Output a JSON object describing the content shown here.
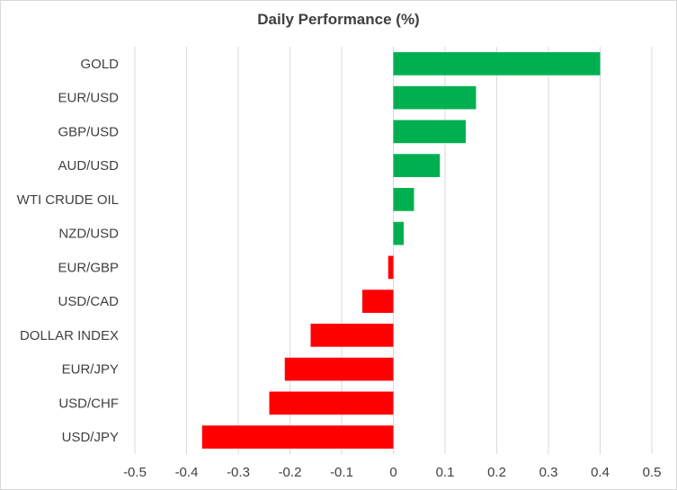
{
  "chart_data": {
    "type": "bar",
    "orientation": "horizontal",
    "title": "Daily Performance  (%)",
    "xlabel": "",
    "ylabel": "",
    "xlim": [
      -0.5,
      0.5
    ],
    "x_ticks": [
      "-0.5",
      "-0.4",
      "-0.3",
      "-0.2",
      "-0.1",
      "0",
      "0.1",
      "0.2",
      "0.3",
      "0.4",
      "0.5"
    ],
    "grid": "vertical",
    "categories": [
      "GOLD",
      "EUR/USD",
      "GBP/USD",
      "AUD/USD",
      "WTI CRUDE OIL",
      "NZD/USD",
      "EUR/GBP",
      "USD/CAD",
      "DOLLAR INDEX",
      "EUR/JPY",
      "USD/CHF",
      "USD/JPY"
    ],
    "values": [
      0.4,
      0.16,
      0.14,
      0.09,
      0.04,
      0.02,
      -0.01,
      -0.06,
      -0.16,
      -0.21,
      -0.24,
      -0.37
    ],
    "colors": {
      "positive": "#00b050",
      "negative": "#ff0000",
      "grid": "#d9d9d9",
      "text": "#404040"
    }
  }
}
